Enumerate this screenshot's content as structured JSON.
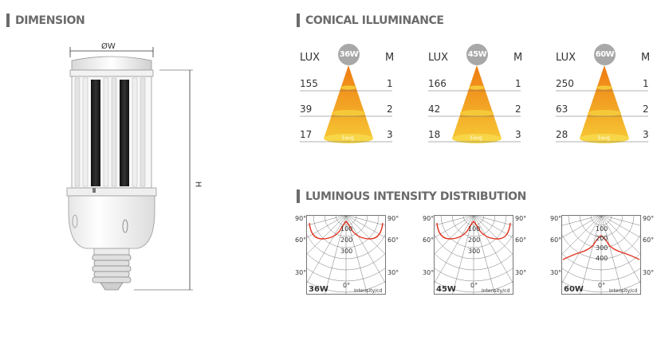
{
  "dimension": {
    "title": "DIMENSION",
    "width_label": "ØW",
    "height_label": "H"
  },
  "conical": {
    "title": "CONICAL ILLUMINANCE",
    "lux_label": "LUX",
    "m_label": "M",
    "eavg_label": "Eavg",
    "cones": [
      {
        "watt": "36W",
        "rows": [
          {
            "lux": "155",
            "m": "1"
          },
          {
            "lux": "39",
            "m": "2"
          },
          {
            "lux": "17",
            "m": "3"
          }
        ]
      },
      {
        "watt": "45W",
        "rows": [
          {
            "lux": "166",
            "m": "1"
          },
          {
            "lux": "42",
            "m": "2"
          },
          {
            "lux": "18",
            "m": "3"
          }
        ]
      },
      {
        "watt": "60W",
        "rows": [
          {
            "lux": "250",
            "m": "1"
          },
          {
            "lux": "63",
            "m": "2"
          },
          {
            "lux": "28",
            "m": "3"
          }
        ]
      }
    ]
  },
  "luminous": {
    "title": "LUMINOUS INTENSITY DISTRIBUTION",
    "intensity_label": "Intensity/cd",
    "angle_labels": {
      "a90": "90°",
      "a60": "60°",
      "a30": "30°",
      "a0": "0°"
    },
    "diagrams": [
      {
        "watt": "36W",
        "rings": [
          "100",
          "200",
          "300"
        ]
      },
      {
        "watt": "45W",
        "rings": [
          "100",
          "200",
          "300"
        ]
      },
      {
        "watt": "60W",
        "rings": [
          "100",
          "200",
          "300",
          "400"
        ]
      }
    ]
  },
  "colors": {
    "section_gray": "#6b6b6b",
    "cone_top": "#f39a12",
    "cone_bottom": "#f7d23a",
    "curve_red": "#e2301b",
    "badge_gray": "#a8a8a8"
  }
}
